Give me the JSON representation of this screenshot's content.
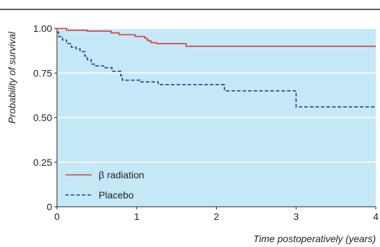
{
  "chart_data": {
    "type": "line",
    "title": "",
    "xlabel": "Time postoperatively (years)",
    "ylabel": "Probability of survival",
    "xlim": [
      0,
      4
    ],
    "ylim": [
      0,
      1
    ],
    "x_ticks": [
      "0",
      "1",
      "2",
      "3",
      "4"
    ],
    "y_ticks": [
      "0",
      "0.25",
      "0.50",
      "0.75",
      "1.00"
    ],
    "grid": "horizontal",
    "background_color": "#c5e8f7",
    "legend_position": "bottom-left",
    "series": [
      {
        "name": "β radiation",
        "color": "#e3342f",
        "line_style": "solid",
        "step": true,
        "points": [
          [
            0,
            1.0
          ],
          [
            0.12,
            0.99
          ],
          [
            0.38,
            0.985
          ],
          [
            0.68,
            0.975
          ],
          [
            0.78,
            0.965
          ],
          [
            0.98,
            0.955
          ],
          [
            1.1,
            0.945
          ],
          [
            1.13,
            0.935
          ],
          [
            1.15,
            0.93
          ],
          [
            1.18,
            0.92
          ],
          [
            1.25,
            0.915
          ],
          [
            1.62,
            0.9
          ],
          [
            4.0,
            0.9
          ]
        ]
      },
      {
        "name": "Placebo",
        "color": "#1f3a93",
        "line_style": "dashed",
        "step": true,
        "points": [
          [
            0,
            0.98
          ],
          [
            0.02,
            0.955
          ],
          [
            0.07,
            0.935
          ],
          [
            0.12,
            0.915
          ],
          [
            0.18,
            0.895
          ],
          [
            0.24,
            0.885
          ],
          [
            0.29,
            0.87
          ],
          [
            0.35,
            0.845
          ],
          [
            0.38,
            0.825
          ],
          [
            0.43,
            0.8
          ],
          [
            0.47,
            0.79
          ],
          [
            0.6,
            0.78
          ],
          [
            0.69,
            0.76
          ],
          [
            0.8,
            0.735
          ],
          [
            0.82,
            0.71
          ],
          [
            1.04,
            0.7
          ],
          [
            1.27,
            0.685
          ],
          [
            2.1,
            0.65
          ],
          [
            3.0,
            0.56
          ],
          [
            4.0,
            0.56
          ]
        ]
      }
    ]
  }
}
